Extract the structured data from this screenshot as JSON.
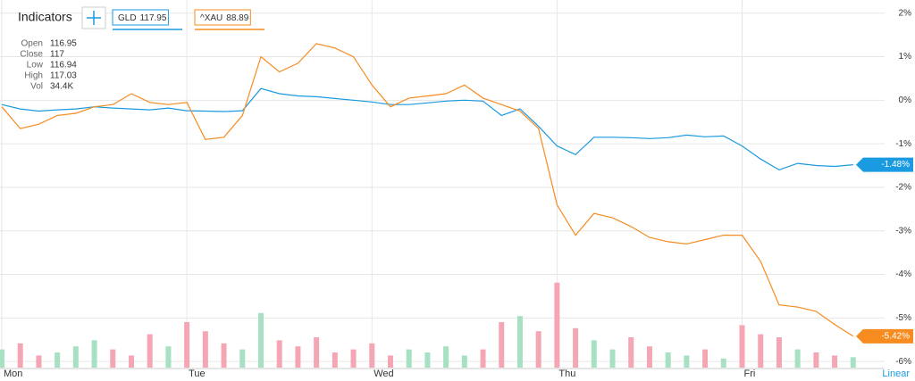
{
  "chart_data": {
    "type": "line",
    "indicators_label": "Indicators",
    "scale_label": "Linear",
    "log_scale": false,
    "grid": true,
    "x": [
      0,
      0.1,
      0.2,
      0.3,
      0.4,
      0.5,
      0.6,
      0.7,
      0.8,
      0.9,
      1,
      1.1,
      1.2,
      1.3,
      1.4,
      1.5,
      1.6,
      1.7,
      1.8,
      1.9,
      2,
      2.1,
      2.2,
      2.3,
      2.4,
      2.5,
      2.6,
      2.7,
      2.8,
      2.9,
      3,
      3.1,
      3.2,
      3.3,
      3.4,
      3.5,
      3.6,
      3.7,
      3.8,
      3.9,
      4,
      4.1,
      4.2,
      4.3,
      4.4,
      4.5,
      4.6
    ],
    "xlim": [
      0,
      4.77
    ],
    "xticks": [
      {
        "value": 0,
        "label": "Mon"
      },
      {
        "value": 1,
        "label": "Tue"
      },
      {
        "value": 2,
        "label": "Wed"
      },
      {
        "value": 3,
        "label": "Thu"
      },
      {
        "value": 4,
        "label": "Fri"
      }
    ],
    "ylim": [
      -6.1,
      2.2
    ],
    "yticks": [
      {
        "value": 2,
        "label": "2%"
      },
      {
        "value": 1,
        "label": "1%"
      },
      {
        "value": 0,
        "label": "0%"
      },
      {
        "value": -1,
        "label": "-1%"
      },
      {
        "value": -2,
        "label": "-2%"
      },
      {
        "value": -3,
        "label": "-3%"
      },
      {
        "value": -4,
        "label": "-4%"
      },
      {
        "value": -5,
        "label": "-5%"
      },
      {
        "value": -6,
        "label": "-6%"
      }
    ],
    "series": [
      {
        "name": "GLD",
        "price": 117.95,
        "color": "#1a9ae0",
        "end_label": "-1.48%",
        "values": [
          -0.1,
          -0.2,
          -0.25,
          -0.22,
          -0.2,
          -0.15,
          -0.18,
          -0.2,
          -0.22,
          -0.18,
          -0.24,
          -0.25,
          -0.26,
          -0.24,
          0.27,
          0.15,
          0.1,
          0.08,
          0.04,
          0,
          -0.04,
          -0.1,
          -0.1,
          -0.06,
          -0.02,
          0,
          -0.02,
          -0.35,
          -0.2,
          -0.6,
          -1.05,
          -1.25,
          -0.85,
          -0.85,
          -0.86,
          -0.88,
          -0.86,
          -0.8,
          -0.84,
          -0.82,
          -1.05,
          -1.35,
          -1.6,
          -1.45,
          -1.5,
          -1.52,
          -1.48
        ]
      },
      {
        "name": "^XAU",
        "price": 88.89,
        "color": "#f68b1f",
        "end_label": "-5.42%",
        "values": [
          -0.15,
          -0.65,
          -0.55,
          -0.35,
          -0.3,
          -0.15,
          -0.1,
          0.15,
          -0.05,
          -0.1,
          -0.05,
          -0.9,
          -0.85,
          -0.35,
          1.0,
          0.65,
          0.85,
          1.3,
          1.2,
          1.0,
          0.35,
          -0.15,
          0.05,
          0.1,
          0.15,
          0.35,
          0.05,
          -0.1,
          -0.25,
          -0.65,
          -2.4,
          -3.1,
          -2.6,
          -2.7,
          -2.9,
          -3.15,
          -3.25,
          -3.3,
          -3.2,
          -3.1,
          -3.1,
          -3.7,
          -4.7,
          -4.75,
          -4.85,
          -5.15,
          -5.42
        ]
      }
    ],
    "volume": {
      "lim": [
        0,
        300000
      ],
      "up_color": "#a8e0c4",
      "down_color": "#f4a6b4",
      "values": [
        60000,
        80000,
        40000,
        50000,
        70000,
        90000,
        60000,
        40000,
        110000,
        70000,
        150000,
        120000,
        80000,
        60000,
        180000,
        90000,
        70000,
        100000,
        50000,
        60000,
        80000,
        40000,
        60000,
        50000,
        70000,
        40000,
        60000,
        150000,
        170000,
        120000,
        280000,
        130000,
        90000,
        60000,
        100000,
        70000,
        50000,
        40000,
        60000,
        30000,
        140000,
        110000,
        100000,
        60000,
        50000,
        40000,
        34400
      ]
    },
    "info": [
      {
        "label": "Open",
        "value": 116.95
      },
      {
        "label": "Close",
        "value": 117
      },
      {
        "label": "Low",
        "value": 116.94
      },
      {
        "label": "High",
        "value": 117.03
      },
      {
        "label": "Vol",
        "value": "34.4K"
      }
    ]
  }
}
